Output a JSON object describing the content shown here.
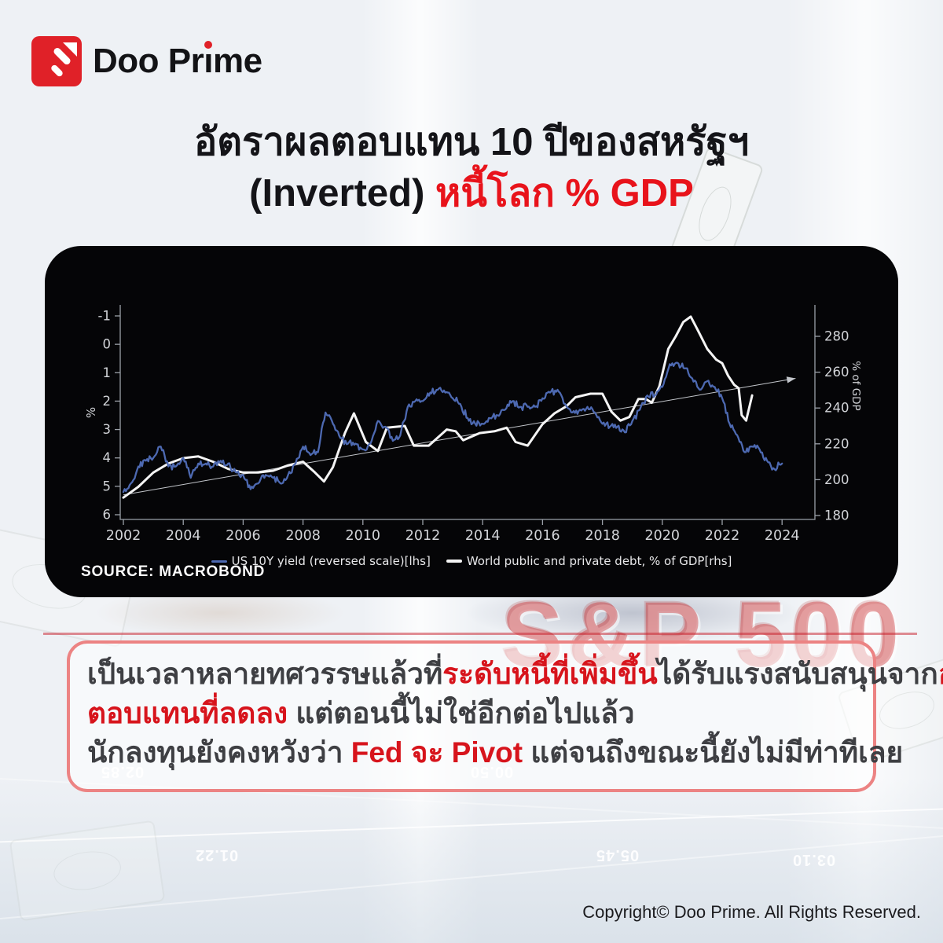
{
  "brand": {
    "logo_text": "Doo Prime",
    "logo_render": {
      "pre": "Doo Pr",
      "i": "ı",
      "post": "me"
    },
    "icons": {
      "logo": "doo-prime-arrow-logo-icon"
    },
    "accent_red": "#e02128"
  },
  "title": {
    "line1": "อัตราผลตอบแทน 10 ปีของสหรัฐฯ",
    "line2_black": "(Inverted)",
    "line2_red": "หนี้โลก % GDP",
    "red_color": "#e8131b"
  },
  "chart_card": {
    "source": "SOURCE: MACROBOND",
    "background": "#050507"
  },
  "chart_data": {
    "type": "line",
    "title": "",
    "x_axis": {
      "label": "",
      "ticks": [
        2002,
        2004,
        2006,
        2008,
        2010,
        2012,
        2014,
        2016,
        2018,
        2020,
        2022,
        2024
      ],
      "range": [
        2001.9,
        2025.1
      ]
    },
    "left_axis": {
      "label": "%",
      "ticks": [
        -1,
        0,
        1,
        2,
        3,
        4,
        5,
        6
      ],
      "inverted": true,
      "range": [
        -1,
        6
      ]
    },
    "right_axis": {
      "label": "% of GDP",
      "ticks": [
        180,
        200,
        220,
        240,
        260,
        280
      ],
      "range": [
        180,
        285
      ]
    },
    "grid": false,
    "legend_position": "bottom",
    "series": [
      {
        "name": "US 10Y yield (reversed scale)[lhs]",
        "color": "#4d69b1",
        "axis": "left",
        "x": [
          2002.0,
          2002.25,
          2002.5,
          2002.75,
          2003.0,
          2003.25,
          2003.5,
          2003.75,
          2004.0,
          2004.25,
          2004.5,
          2004.75,
          2005.0,
          2005.25,
          2005.5,
          2005.75,
          2006.0,
          2006.25,
          2006.5,
          2006.75,
          2007.0,
          2007.25,
          2007.5,
          2007.75,
          2008.0,
          2008.25,
          2008.5,
          2008.75,
          2009.0,
          2009.25,
          2009.5,
          2009.75,
          2010.0,
          2010.25,
          2010.5,
          2010.75,
          2011.0,
          2011.25,
          2011.5,
          2011.75,
          2012.0,
          2012.25,
          2012.5,
          2012.75,
          2013.0,
          2013.25,
          2013.5,
          2013.75,
          2014.0,
          2014.25,
          2014.5,
          2014.75,
          2015.0,
          2015.25,
          2015.5,
          2015.75,
          2016.0,
          2016.25,
          2016.5,
          2016.75,
          2017.0,
          2017.25,
          2017.5,
          2017.75,
          2018.0,
          2018.25,
          2018.5,
          2018.75,
          2019.0,
          2019.25,
          2019.5,
          2019.75,
          2020.0,
          2020.25,
          2020.5,
          2020.75,
          2021.0,
          2021.25,
          2021.5,
          2021.75,
          2022.0,
          2022.25,
          2022.5,
          2022.75,
          2023.0,
          2023.25,
          2023.5,
          2023.75,
          2024.0
        ],
        "values": [
          5.2,
          4.9,
          4.3,
          4.1,
          4.0,
          3.6,
          4.3,
          4.3,
          4.0,
          4.7,
          4.2,
          4.2,
          4.3,
          4.1,
          4.2,
          4.5,
          4.6,
          5.1,
          4.9,
          4.6,
          4.7,
          4.9,
          4.6,
          4.2,
          3.6,
          3.9,
          3.8,
          2.4,
          2.8,
          3.3,
          3.5,
          3.5,
          3.7,
          3.5,
          2.7,
          2.9,
          3.4,
          3.2,
          2.2,
          2.0,
          2.0,
          1.7,
          1.6,
          1.7,
          1.9,
          2.1,
          2.6,
          2.8,
          2.8,
          2.6,
          2.5,
          2.3,
          2.0,
          2.2,
          2.2,
          2.2,
          1.9,
          1.7,
          1.6,
          2.1,
          2.4,
          2.3,
          2.2,
          2.4,
          2.8,
          2.9,
          2.9,
          3.1,
          2.7,
          2.3,
          1.8,
          1.8,
          1.5,
          0.7,
          0.65,
          0.85,
          1.2,
          1.6,
          1.3,
          1.5,
          1.9,
          2.8,
          3.2,
          3.8,
          3.6,
          3.7,
          4.1,
          4.4,
          4.2
        ]
      },
      {
        "name": "World public and private debt, % of GDP[rhs]",
        "color": "#f4f4f4",
        "axis": "right",
        "x": [
          2002.0,
          2002.5,
          2003.0,
          2003.5,
          2004.0,
          2004.5,
          2005.0,
          2005.5,
          2006.0,
          2006.5,
          2007.0,
          2007.5,
          2008.0,
          2008.4,
          2008.7,
          2009.0,
          2009.4,
          2009.7,
          2010.1,
          2010.5,
          2010.8,
          2011.4,
          2011.7,
          2012.2,
          2012.8,
          2013.1,
          2013.35,
          2013.9,
          2014.4,
          2014.8,
          2015.1,
          2015.5,
          2016.0,
          2016.4,
          2016.8,
          2017.1,
          2017.6,
          2018.0,
          2018.3,
          2018.6,
          2018.9,
          2019.2,
          2019.45,
          2019.65,
          2019.9,
          2020.2,
          2020.45,
          2020.7,
          2020.95,
          2021.2,
          2021.5,
          2021.8,
          2022.0,
          2022.2,
          2022.4,
          2022.55,
          2022.65,
          2022.8,
          2023.0
        ],
        "values": [
          190,
          196,
          204,
          209,
          212,
          213,
          210,
          206,
          204,
          204,
          205,
          208,
          210,
          204,
          199,
          207,
          226,
          237,
          221,
          216,
          229,
          230,
          219,
          219,
          228,
          227,
          222,
          226,
          227,
          229,
          221,
          219,
          231,
          237,
          241,
          246,
          248,
          248,
          238,
          233,
          235,
          245,
          245,
          243,
          252,
          273,
          280,
          288,
          291,
          283,
          273,
          267,
          265,
          258,
          253,
          251,
          236,
          233,
          247
        ]
      }
    ],
    "trend_line": {
      "name": "trend",
      "color": "#c3c6cb",
      "axis": "left",
      "x": [
        2002.0,
        2024.45
      ],
      "values": [
        5.3,
        1.2
      ],
      "arrow": true
    },
    "axis_color": "#9ba0a8",
    "tick_text_color": "#d2d4d8"
  },
  "callout": {
    "border_color": "#ec8383",
    "lines": [
      [
        {
          "t": "เป็นเวลาหลายทศวรรษแล้วที่",
          "red": false
        },
        {
          "t": "ระดับหนี้ที่เพิ่มขึ้น",
          "red": true
        },
        {
          "t": "ได้รับแรงสนับสนุนจาก",
          "red": false
        },
        {
          "t": "อัตราผล",
          "red": true
        }
      ],
      [
        {
          "t": "ตอบแทนที่ลดลง",
          "red": true
        },
        {
          "t": " แต่ตอนนี้ไม่ใช่อีกต่อไปแล้ว",
          "red": false
        }
      ],
      [
        {
          "t": "นักลงทุนยังคงหวังว่า ",
          "red": false
        },
        {
          "t": "Fed จะ Pivot",
          "red": true
        },
        {
          "t": " แต่จนถึงขณะนี้ยังไม่มีท่าทีเลย",
          "red": false
        }
      ]
    ]
  },
  "background": {
    "sp500_text": "S&P 500",
    "ticker_numbers": [
      {
        "t": "02.85",
        "x": 128,
        "y": 970
      },
      {
        "t": "00.50",
        "x": 598,
        "y": 970
      },
      {
        "t": "01.22",
        "x": 248,
        "y": 1076
      },
      {
        "t": "05.45",
        "x": 758,
        "y": 1076
      },
      {
        "t": "03.10",
        "x": 1008,
        "y": 1082
      }
    ]
  },
  "footer": {
    "copyright": "Copyright© Doo Prime. All Rights Reserved."
  }
}
